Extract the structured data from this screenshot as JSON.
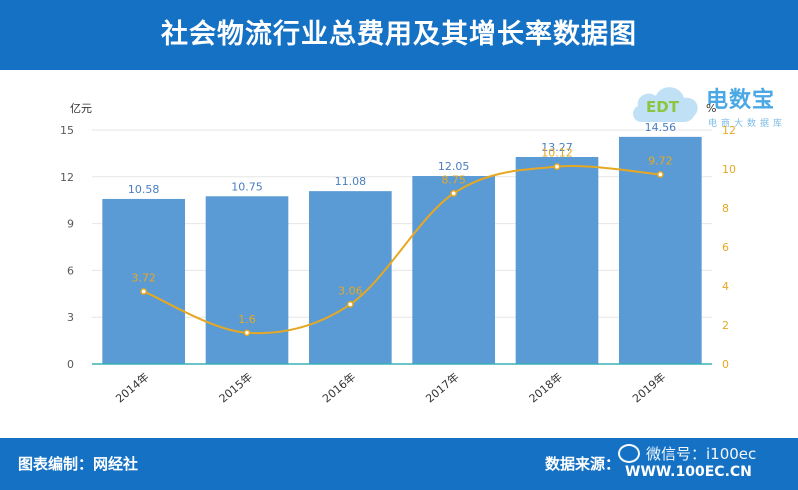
{
  "header": {
    "title": "社会物流行业总费用及其增长率数据图"
  },
  "footer": {
    "left_label": "图表编制：网经社",
    "right_label": "数据来源：",
    "url": "WWW.100EC.CN",
    "wechat": "微信号：i100ec"
  },
  "logo": {
    "name": "电数宝",
    "subtitle": "电商大数据库",
    "mark": "EDT"
  },
  "colors": {
    "header_bg": "#1471c4",
    "bar": "#5b9bd5",
    "bar_label": "#4a7ec0",
    "line": "#e6a822",
    "axis": "#595959"
  },
  "chart_data": {
    "type": "bar",
    "categories": [
      "2014年",
      "2015年",
      "2016年",
      "2017年",
      "2018年",
      "2019年"
    ],
    "series": [
      {
        "type": "bar",
        "axis": "left",
        "values": [
          10.58,
          10.75,
          11.08,
          12.05,
          13.27,
          14.56
        ],
        "labels": [
          "10.58",
          "10.75",
          "11.08",
          "12.05",
          "13.27",
          "14.56"
        ]
      },
      {
        "type": "line",
        "axis": "right",
        "values": [
          3.72,
          1.6,
          3.06,
          8.75,
          10.12,
          9.72
        ],
        "labels": [
          "3.72",
          "1.6",
          "3.06",
          "8.75",
          "10.12",
          "9.72"
        ]
      }
    ],
    "y_left": {
      "unit": "亿元",
      "min": 0,
      "max": 15,
      "ticks": [
        0,
        3,
        6,
        9,
        12,
        15
      ]
    },
    "y_right": {
      "unit": "%",
      "min": 0,
      "max": 12,
      "ticks": [
        0,
        2,
        4,
        6,
        8,
        10,
        12
      ]
    },
    "grid": true
  }
}
